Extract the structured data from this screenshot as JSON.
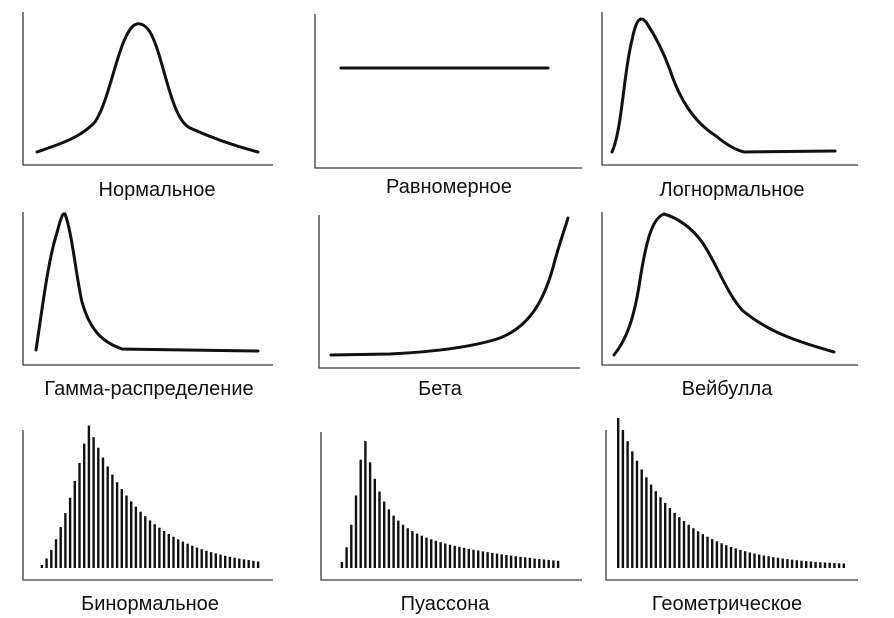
{
  "colors": {
    "curve": "#111111",
    "axis": "#3a3a3a",
    "background": "#ffffff"
  },
  "panels": [
    {
      "key": "normal",
      "label": "Нормальное",
      "kind": "curve",
      "shape": "bell"
    },
    {
      "key": "uniform",
      "label": "Равномерное",
      "kind": "curve",
      "shape": "flat"
    },
    {
      "key": "lognormal",
      "label": "Логнормальное",
      "kind": "curve",
      "shape": "right-skewed"
    },
    {
      "key": "gamma",
      "label": "Гамма-распределение",
      "kind": "curve",
      "shape": "sharp-peak-right-tail"
    },
    {
      "key": "beta",
      "label": "Бета",
      "kind": "curve",
      "shape": "increasing-convex"
    },
    {
      "key": "weibull",
      "label": "Вейбулла",
      "kind": "curve",
      "shape": "skewed-hump"
    },
    {
      "key": "binomial",
      "label": "Бинормальное",
      "kind": "bars",
      "shape": "discrete-hump"
    },
    {
      "key": "poisson",
      "label": "Пуассона",
      "kind": "bars",
      "shape": "discrete-peak-long-tail"
    },
    {
      "key": "geometric",
      "label": "Геометрическое",
      "kind": "bars",
      "shape": "discrete-decay"
    }
  ]
}
